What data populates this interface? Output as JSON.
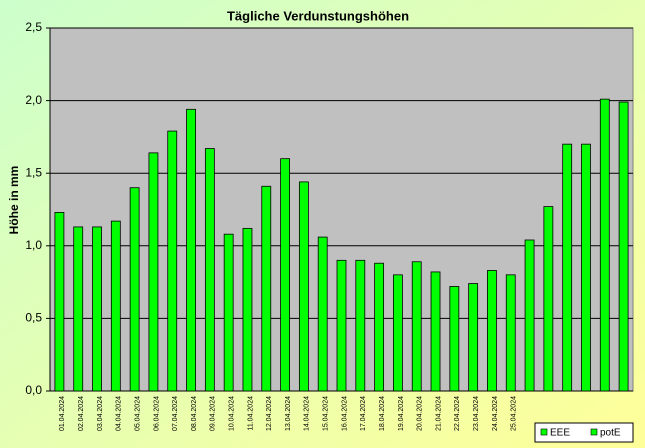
{
  "chart_data": {
    "type": "bar",
    "title": "Tägliche Verdunstungshöhen",
    "y_label": "Höhe in mm",
    "categories": [
      "01.04.2024",
      "02.04.2024",
      "03.04.2024",
      "04.04.2024",
      "05.04.2024",
      "06.04.2024",
      "07.04.2024",
      "08.04.2024",
      "09.04.2024",
      "10.04.2024",
      "11.04.2024",
      "12.04.2024",
      "13.04.2024",
      "14.04.2024",
      "15.04.2024",
      "16.04.2024",
      "17.04.2024",
      "18.04.2024",
      "19.04.2024",
      "20.04.2024",
      "21.04.2024",
      "22.04.2024",
      "23.04.2024",
      "24.04.2024",
      "25.04.2024",
      null,
      null,
      null,
      null,
      null,
      null
    ],
    "values": [
      1.23,
      1.13,
      1.13,
      1.17,
      1.4,
      1.64,
      1.79,
      1.94,
      1.67,
      1.08,
      1.12,
      1.41,
      1.6,
      1.44,
      1.06,
      0.9,
      0.9,
      0.88,
      0.8,
      0.89,
      0.82,
      0.72,
      0.74,
      0.83,
      0.8,
      1.04,
      1.27,
      1.7,
      1.7,
      2.01,
      1.99
    ],
    "color": "#00ff00",
    "ylim": [
      0,
      2.5
    ],
    "yticks": [
      {
        "value": 0,
        "label": "0,0"
      },
      {
        "value": 0.5,
        "label": "0,5"
      },
      {
        "value": 1,
        "label": "1,0"
      },
      {
        "value": 1.5,
        "label": "1,5"
      },
      {
        "value": 2,
        "label": "2,0"
      },
      {
        "value": 2.5,
        "label": "2,5"
      }
    ],
    "grid": true,
    "legend": [
      {
        "name": "EEE",
        "color": "#00ff00"
      },
      {
        "name": "potE",
        "color": "#00ff00"
      }
    ]
  }
}
